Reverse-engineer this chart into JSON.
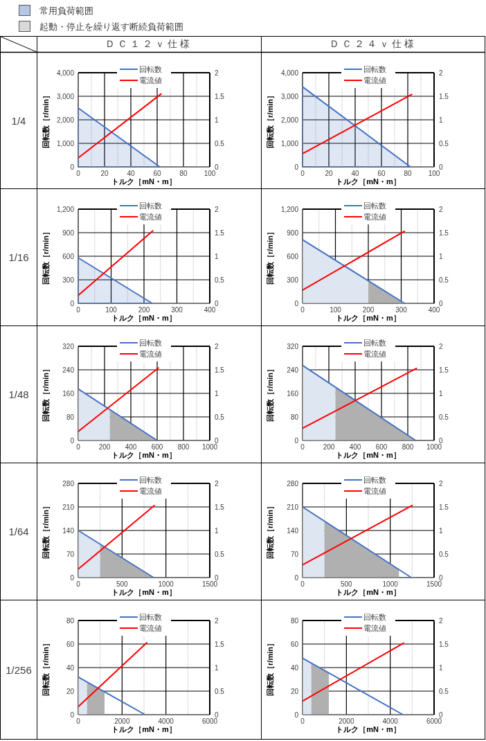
{
  "chart_data": [
    {
      "type": "other",
      "categories": [
        "常用負荷範囲",
        "起動・停止を繰り返す断続負荷範囲"
      ],
      "colors": [
        "#b4c7e7",
        "#d9d9d9"
      ]
    },
    {
      "type": "other",
      "categories": [
        "ＤＣ１２ｖ仕様",
        "ＤＣ２４ｖ仕様"
      ],
      "y_categories": [
        "1/4",
        "1/16",
        "1/48",
        "1/64",
        "1/256"
      ]
    },
    {
      "type": "line",
      "xlabel": "トルク［mN・m］",
      "ylabel": "回転数［r/min］",
      "xlim": [
        0,
        100
      ],
      "xticks": [
        0,
        20,
        40,
        60,
        80,
        100
      ],
      "ylim": [
        0,
        4000
      ],
      "yticks": [
        0,
        {
          "value": 1000,
          "label": "1,000"
        },
        {
          "value": 2000,
          "label": "2,000"
        },
        {
          "value": 3000,
          "label": "3,000"
        },
        {
          "value": 4000,
          "label": "4,000"
        }
      ],
      "y2lim": [
        0,
        2
      ],
      "y2ticks": [
        0,
        0.5,
        1,
        1.5,
        2
      ],
      "grid": true,
      "legend": "top",
      "series": [
        {
          "name": "回転数",
          "type": "area",
          "color": "#4472c4",
          "x": [
            0,
            62
          ],
          "values": [
            2500,
            0
          ]
        },
        {
          "name": "電流値",
          "color": "#ff0000",
          "axis": "y2",
          "x": [
            0,
            63
          ],
          "values": [
            0.19,
            1.55
          ]
        }
      ]
    },
    {
      "type": "line",
      "xlabel": "トルク［mN・m］",
      "ylabel": "回転数［r/min］",
      "xlim": [
        0,
        100
      ],
      "xticks": [
        0,
        20,
        40,
        60,
        80,
        100
      ],
      "ylim": [
        0,
        4000
      ],
      "yticks": [
        0,
        {
          "value": 1000,
          "label": "1,000"
        },
        {
          "value": 2000,
          "label": "2,000"
        },
        {
          "value": 3000,
          "label": "3,000"
        },
        {
          "value": 4000,
          "label": "4,000"
        }
      ],
      "y2lim": [
        0,
        2
      ],
      "y2ticks": [
        0,
        0.5,
        1,
        1.5,
        2
      ],
      "grid": true,
      "legend": "top",
      "series": [
        {
          "name": "回転数",
          "type": "area",
          "color": "#4472c4",
          "x": [
            0,
            82
          ],
          "values": [
            3400,
            0
          ]
        },
        {
          "name": "電流値",
          "color": "#ff0000",
          "axis": "y2",
          "x": [
            0,
            83
          ],
          "values": [
            0.28,
            1.54
          ]
        }
      ]
    },
    {
      "type": "line",
      "xlabel": "トルク［mN・m］",
      "ylabel": "回転数［r/min］",
      "xlim": [
        0,
        400
      ],
      "xticks": [
        0,
        100,
        200,
        300,
        400
      ],
      "ylim": [
        0,
        1200
      ],
      "yticks": [
        0,
        300,
        600,
        900,
        {
          "value": 1200,
          "label": "1,200"
        }
      ],
      "y2lim": [
        0,
        2
      ],
      "y2ticks": [
        0,
        0.5,
        1,
        1.5,
        2
      ],
      "grid": true,
      "legend": "top",
      "series": [
        {
          "name": "回転数",
          "type": "area",
          "color": "#4472c4",
          "x": [
            0,
            225
          ],
          "values": [
            580,
            0
          ]
        },
        {
          "name": "電流値",
          "color": "#ff0000",
          "axis": "y2",
          "x": [
            0,
            227
          ],
          "values": [
            0.17,
            1.54
          ]
        }
      ]
    },
    {
      "type": "line",
      "xlabel": "トルク［mN・m］",
      "ylabel": "回転数［r/min］",
      "xlim": [
        0,
        400
      ],
      "xticks": [
        0,
        100,
        200,
        300,
        400
      ],
      "ylim": [
        0,
        1200
      ],
      "yticks": [
        0,
        300,
        600,
        900,
        {
          "value": 1200,
          "label": "1,200"
        }
      ],
      "y2lim": [
        0,
        2
      ],
      "y2ticks": [
        0,
        0.5,
        1,
        1.5,
        2
      ],
      "grid": true,
      "legend": "top",
      "series": [
        {
          "type": "area",
          "color": "#dee6f2",
          "x": [
            0,
            200
          ],
          "values": [
            810,
            290
          ]
        },
        {
          "type": "area",
          "color": "#b0b0b0",
          "x": [
            200,
            310
          ],
          "values": [
            290,
            0
          ]
        },
        {
          "name": "回転数",
          "color": "#4472c4",
          "x": [
            0,
            310
          ],
          "values": [
            810,
            0
          ]
        },
        {
          "name": "電流値",
          "color": "#ff0000",
          "axis": "y2",
          "x": [
            0,
            310
          ],
          "values": [
            0.28,
            1.53
          ]
        }
      ]
    },
    {
      "type": "line",
      "xlabel": "トルク［mN・m］",
      "ylabel": "回転数［r/min］",
      "xlim": [
        0,
        1000
      ],
      "xticks": [
        0,
        200,
        400,
        600,
        800,
        1000
      ],
      "ylim": [
        0,
        320
      ],
      "yticks": [
        0,
        80,
        160,
        240,
        320
      ],
      "y2lim": [
        0,
        2
      ],
      "y2ticks": [
        0,
        0.5,
        1,
        1.5,
        2
      ],
      "grid": true,
      "legend": "top",
      "series": [
        {
          "type": "area",
          "color": "#dee6f2",
          "x": [
            0,
            240
          ],
          "values": [
            175,
            105
          ]
        },
        {
          "type": "area",
          "color": "#b0b0b0",
          "x": [
            240,
            600
          ],
          "values": [
            105,
            0
          ]
        },
        {
          "name": "回転数",
          "color": "#4472c4",
          "x": [
            0,
            600
          ],
          "values": [
            175,
            0
          ]
        },
        {
          "name": "電流値",
          "color": "#ff0000",
          "axis": "y2",
          "x": [
            0,
            610
          ],
          "values": [
            0.19,
            1.54
          ]
        }
      ]
    },
    {
      "type": "line",
      "xlabel": "トルク［mN・m］",
      "ylabel": "回転数［r/min］",
      "xlim": [
        0,
        1000
      ],
      "xticks": [
        0,
        200,
        400,
        600,
        800,
        1000
      ],
      "ylim": [
        0,
        320
      ],
      "yticks": [
        0,
        80,
        160,
        240,
        320
      ],
      "y2lim": [
        0,
        2
      ],
      "y2ticks": [
        0,
        0.5,
        1,
        1.5,
        2
      ],
      "grid": true,
      "legend": "top",
      "series": [
        {
          "type": "area",
          "color": "#dee6f2",
          "x": [
            0,
            250
          ],
          "values": [
            255,
            180
          ]
        },
        {
          "type": "area",
          "color": "#b0b0b0",
          "x": [
            250,
            860
          ],
          "values": [
            180,
            0
          ]
        },
        {
          "name": "回転数",
          "color": "#4472c4",
          "x": [
            0,
            860
          ],
          "values": [
            255,
            0
          ]
        },
        {
          "name": "電流値",
          "color": "#ff0000",
          "axis": "y2",
          "x": [
            0,
            866
          ],
          "values": [
            0.26,
            1.53
          ]
        }
      ]
    },
    {
      "type": "line",
      "xlabel": "トルク［mN・m］",
      "ylabel": "回転数［r/min］",
      "xlim": [
        0,
        1500
      ],
      "xticks": [
        0,
        500,
        1000,
        1500
      ],
      "ylim": [
        0,
        280
      ],
      "yticks": [
        0,
        70,
        140,
        210,
        280
      ],
      "y2lim": [
        0,
        2
      ],
      "y2ticks": [
        0,
        0.5,
        1,
        1.5,
        2
      ],
      "grid": true,
      "legend": "top",
      "series": [
        {
          "type": "area",
          "color": "#dee6f2",
          "x": [
            0,
            250
          ],
          "values": [
            140,
            100
          ]
        },
        {
          "type": "area",
          "color": "#b0b0b0",
          "x": [
            250,
            860
          ],
          "values": [
            100,
            0
          ]
        },
        {
          "name": "回転数",
          "color": "#4472c4",
          "x": [
            0,
            860
          ],
          "values": [
            140,
            0
          ]
        },
        {
          "name": "電流値",
          "color": "#ff0000",
          "axis": "y2",
          "x": [
            0,
            868
          ],
          "values": [
            0.18,
            1.53
          ]
        }
      ]
    },
    {
      "type": "line",
      "xlabel": "トルク［mN・m］",
      "ylabel": "回転数［r/min］",
      "xlim": [
        0,
        1500
      ],
      "xticks": [
        0,
        500,
        1000,
        1500
      ],
      "ylim": [
        0,
        280
      ],
      "yticks": [
        0,
        70,
        140,
        210,
        280
      ],
      "y2lim": [
        0,
        2
      ],
      "y2ticks": [
        0,
        0.5,
        1,
        1.5,
        2
      ],
      "grid": true,
      "legend": "top",
      "series": [
        {
          "type": "area",
          "color": "#dee6f2",
          "x": [
            0,
            250
          ],
          "values": [
            210,
            170
          ]
        },
        {
          "type": "area",
          "color": "#b0b0b0",
          "x": [
            250,
            1100
          ],
          "values": [
            170,
            24
          ]
        },
        {
          "name": "回転数",
          "color": "#4472c4",
          "x": [
            0,
            1240
          ],
          "values": [
            210,
            0
          ]
        },
        {
          "name": "電流値",
          "color": "#ff0000",
          "axis": "y2",
          "x": [
            0,
            1250
          ],
          "values": [
            0.27,
            1.53
          ]
        }
      ]
    },
    {
      "type": "line",
      "xlabel": "トルク［mN・m］",
      "ylabel": "回転数［r/min］",
      "xlim": [
        0,
        6000
      ],
      "xticks": [
        0,
        2000,
        4000,
        6000
      ],
      "ylim": [
        0,
        80
      ],
      "yticks": [
        0,
        20,
        40,
        60,
        80
      ],
      "y2lim": [
        0,
        2
      ],
      "y2ticks": [
        0,
        0.5,
        1,
        1.5,
        2
      ],
      "grid": true,
      "legend": "top",
      "series": [
        {
          "type": "area",
          "color": "#dee6f2",
          "x": [
            0,
            400
          ],
          "values": [
            32,
            28
          ]
        },
        {
          "type": "area",
          "color": "#b0b0b0",
          "x": [
            400,
            1200
          ],
          "values": [
            28,
            19
          ]
        },
        {
          "name": "回転数",
          "color": "#4472c4",
          "x": [
            0,
            3050
          ],
          "values": [
            32,
            0
          ]
        },
        {
          "name": "電流値",
          "color": "#ff0000",
          "axis": "y2",
          "x": [
            0,
            3130
          ],
          "values": [
            0.17,
            1.53
          ]
        }
      ]
    },
    {
      "type": "line",
      "xlabel": "トルク［mN・m］",
      "ylabel": "回転数［r/min］",
      "xlim": [
        0,
        6000
      ],
      "xticks": [
        0,
        2000,
        4000,
        6000
      ],
      "ylim": [
        0,
        80
      ],
      "yticks": [
        0,
        20,
        40,
        60,
        80
      ],
      "y2lim": [
        0,
        2
      ],
      "y2ticks": [
        0,
        0.5,
        1,
        1.5,
        2
      ],
      "grid": true,
      "legend": "top",
      "series": [
        {
          "type": "area",
          "color": "#dee6f2",
          "x": [
            0,
            400
          ],
          "values": [
            48,
            44
          ]
        },
        {
          "type": "area",
          "color": "#b0b0b0",
          "x": [
            400,
            1200
          ],
          "values": [
            44,
            36
          ]
        },
        {
          "name": "回転数",
          "color": "#4472c4",
          "x": [
            0,
            4580
          ],
          "values": [
            48,
            0
          ]
        },
        {
          "name": "電流値",
          "color": "#ff0000",
          "axis": "y2",
          "x": [
            0,
            4610
          ],
          "values": [
            0.29,
            1.52
          ]
        }
      ]
    }
  ]
}
